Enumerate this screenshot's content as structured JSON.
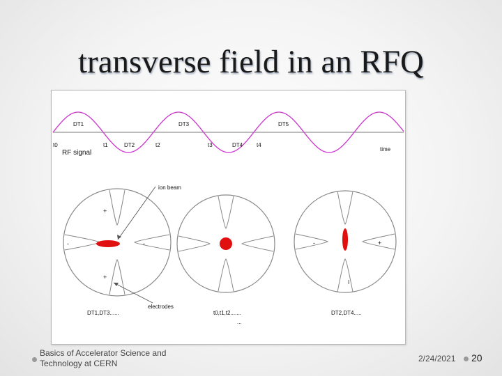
{
  "slide": {
    "title": "transverse field in an RFQ"
  },
  "diagram": {
    "drift_labels": [
      "DT1",
      "DT3",
      "DT5"
    ],
    "lower_labels": [
      "t0",
      "t1",
      "DT2",
      "t2",
      "t3",
      "DT4",
      "t4"
    ],
    "time_label": "time",
    "signal_label": "RF signal",
    "ion_beam_label": "ion beam",
    "electrodes_label": "electrodes",
    "caption_left": "DT1,DT3......",
    "caption_middle": "t0,t1,t2.......",
    "caption_middle_sub": "...",
    "caption_right": "DT2,DT4.....",
    "left_signs": {
      "top": "+",
      "left": "-",
      "right": "-",
      "bottom": "+"
    },
    "right_signs": {
      "left": "-",
      "right": "+",
      "bottom": "I"
    },
    "colors": {
      "sine": "#cc33cc",
      "beam": "#e01010",
      "outline": "#888888",
      "axis": "#777777"
    }
  },
  "footer": {
    "left_text_line1": "Basics of Accelerator Science and",
    "left_text_line2": "Technology at CERN",
    "date": "2/24/2021",
    "page": "20"
  }
}
